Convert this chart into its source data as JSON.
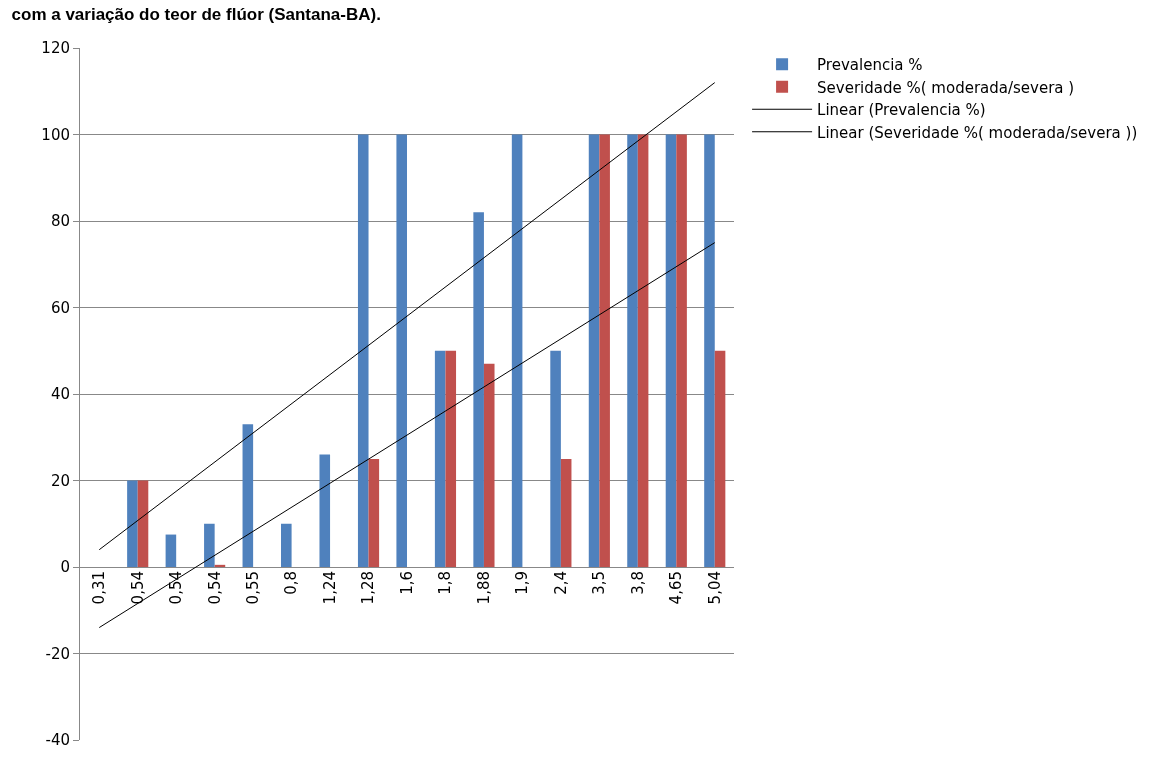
{
  "chart_data": {
    "type": "bar",
    "title": "com a variação do teor de flúor (Santana-BA).",
    "categories": [
      "0,31",
      "0,54",
      "0,54",
      "0,54",
      "0,55",
      "0,8",
      "1,24",
      "1,28",
      "1,6",
      "1,8",
      "1,88",
      "1,9",
      "2,4",
      "3,5",
      "3,8",
      "4,65",
      "5,04"
    ],
    "series": [
      {
        "name": "Prevalencia %",
        "color": "#4f81bd",
        "values": [
          0,
          20,
          7.5,
          10,
          33,
          10,
          26,
          100,
          100,
          50,
          82,
          100,
          50,
          100,
          100,
          100,
          100
        ]
      },
      {
        "name": "Severidade %( moderada/severa )",
        "color": "#c0504d",
        "values": [
          0,
          20,
          0,
          0.5,
          0,
          0,
          0,
          25,
          0,
          50,
          47,
          0,
          25,
          100,
          100,
          100,
          50
        ]
      },
      {
        "name": "Linear (Prevalencia %)",
        "type": "line",
        "color": "#000000",
        "x": [
          "0,31",
          "5,04"
        ],
        "values": [
          4,
          112
        ]
      },
      {
        "name": "Linear (Severidade %( moderada/severa ))",
        "type": "line",
        "color": "#000000",
        "x": [
          "0,31",
          "5,04"
        ],
        "values": [
          -14,
          75
        ]
      }
    ],
    "ylim": [
      -40,
      120
    ],
    "yticks": [
      -40,
      -20,
      0,
      20,
      40,
      60,
      80,
      100,
      120
    ],
    "grid": "y",
    "legend": "right",
    "line_style": "solid"
  }
}
